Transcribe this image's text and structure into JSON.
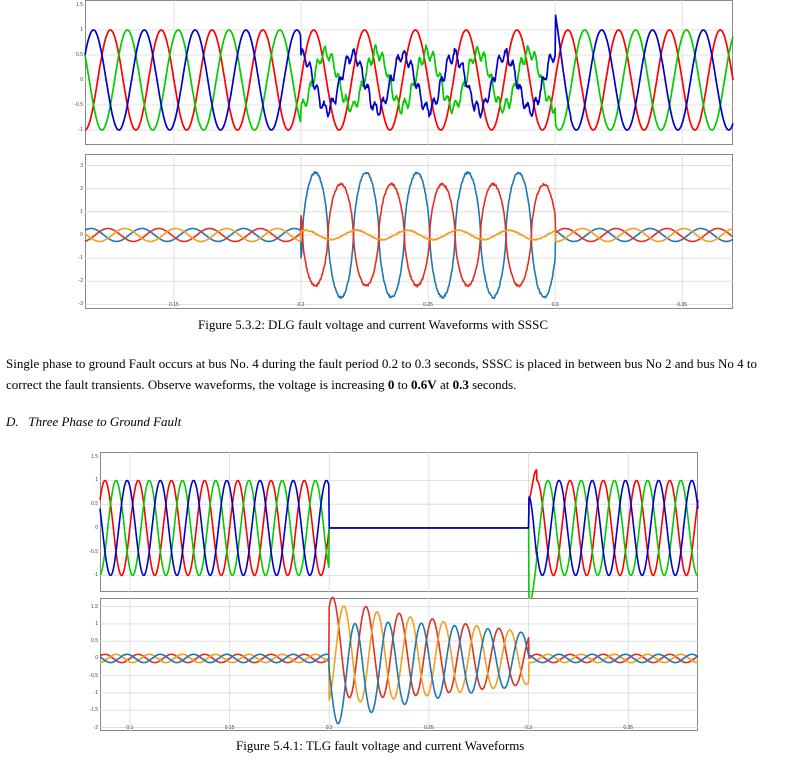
{
  "figure1": {
    "caption": "Figure 5.3.2: DLG fault voltage and current Waveforms with SSSC",
    "xticks": [
      "0.15",
      "0.2",
      "0.25",
      "0.3",
      "0.35"
    ],
    "voltage_yticks": [
      "1.5",
      "1",
      "0.5",
      "0",
      "-0.5",
      "-1"
    ],
    "current_yticks": [
      "3",
      "2",
      "1",
      "0",
      "-1",
      "-2",
      "-3"
    ]
  },
  "paragraph": {
    "part1": "Single phase to ground Fault occurs at bus No. 4 during the fault period 0.2 to 0.3 seconds, SSSC is placed in between bus No 2 and bus No 4 to correct the fault transients. Observe waveforms, the voltage is increasing ",
    "bold1": "0",
    "part2": " to ",
    "bold2": "0.6V",
    "part3": " at ",
    "bold3": "0.3",
    "part4": " seconds."
  },
  "section": {
    "letter": "D.",
    "title": "Three Phase to Ground Fault"
  },
  "figure2": {
    "caption": "Figure 5.4.1: TLG fault voltage and current Waveforms",
    "xticks": [
      "0.1",
      "0.15",
      "0.2",
      "0.25",
      "0.3",
      "0.35"
    ],
    "voltage_yticks": [
      "1.5",
      "1",
      "0.5",
      "0",
      "-0.5",
      "-1"
    ],
    "current_yticks": [
      "1.5",
      "1",
      "0.5",
      "0",
      "-0.5",
      "-1",
      "-1.5",
      "-2"
    ]
  },
  "chart_data": [
    {
      "type": "line",
      "title": "",
      "xlabel": "",
      "ylabel": "",
      "xlim": [
        0.115,
        0.37
      ],
      "ylim": [
        -1.3,
        1.6
      ],
      "grid": true,
      "series": [
        {
          "color": "#ff0000",
          "values_desc": "three-phase 50Hz sinusoids amplitude 1; phases B and C distorted during fault 0.2-0.3 s"
        },
        {
          "color": "#00cc00",
          "values_desc": ""
        },
        {
          "color": "#0000cc",
          "values_desc": ""
        }
      ],
      "x": [
        0.115,
        0.2,
        0.3,
        0.37
      ]
    },
    {
      "type": "line",
      "title": "",
      "xlabel": "",
      "ylabel": "",
      "xlim": [
        0.115,
        0.37
      ],
      "ylim": [
        -3.2,
        3.5
      ],
      "grid": true,
      "series": [
        {
          "color": "#ff0000"
        },
        {
          "color": "#f5a000"
        },
        {
          "color": "#1f77b4"
        }
      ],
      "x": [
        0.115,
        0.2,
        0.3,
        0.37
      ]
    },
    {
      "type": "line",
      "title": "",
      "xlabel": "",
      "ylabel": "",
      "xlim": [
        0.085,
        0.385
      ],
      "ylim": [
        -1.35,
        1.6
      ],
      "grid": true,
      "series": [
        {
          "color": "#ff0000"
        },
        {
          "color": "#00cc00"
        },
        {
          "color": "#0000cc"
        }
      ],
      "x": [
        0.085,
        0.2,
        0.3,
        0.385
      ]
    },
    {
      "type": "line",
      "title": "",
      "xlabel": "",
      "ylabel": "",
      "xlim": [
        0.085,
        0.385
      ],
      "ylim": [
        -2.1,
        1.75
      ],
      "grid": true,
      "series": [
        {
          "color": "#d95319"
        },
        {
          "color": "#edb120"
        },
        {
          "color": "#0072bd"
        }
      ],
      "x": [
        0.085,
        0.2,
        0.3,
        0.385
      ]
    }
  ],
  "colors": {
    "phase_a": "#ff0000",
    "phase_b": "#00cc00",
    "phase_c": "#0000cc",
    "cur_a": "#e03020",
    "cur_b": "#f0a020",
    "cur_c": "#1f77b4",
    "grid": "#d8d8d8",
    "axis": "#888888"
  }
}
